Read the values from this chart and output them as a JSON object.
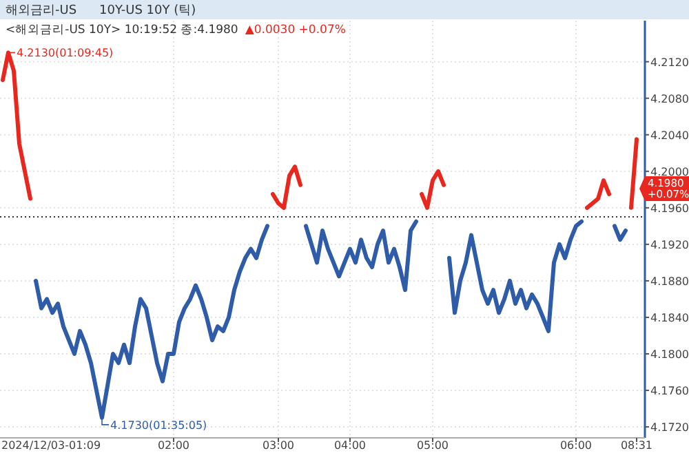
{
  "chart_data": {
    "type": "line",
    "title": "해외금리-US",
    "subtitle": "10Y-US 10Y (틱)",
    "categories": [
      null,
      null,
      null,
      null,
      null,
      null,
      null,
      null,
      null,
      null,
      null,
      null,
      null,
      null,
      null,
      null,
      null,
      null,
      null,
      null,
      null,
      null,
      null,
      null,
      null,
      null,
      null,
      null,
      null,
      null,
      null,
      "02:00",
      null,
      null,
      null,
      null,
      null,
      null,
      null,
      null,
      null,
      null,
      null,
      null,
      null,
      null,
      null,
      null,
      null,
      null,
      "03:00",
      null,
      null,
      null,
      null,
      null,
      null,
      null,
      null,
      null,
      null,
      null,
      null,
      "04:00",
      null,
      null,
      null,
      null,
      null,
      null,
      null,
      null,
      null,
      null,
      null,
      null,
      null,
      null,
      "05:00",
      null,
      null,
      null,
      null,
      null,
      null,
      null,
      null,
      null,
      null,
      null,
      null,
      null,
      null,
      null,
      null,
      null,
      null,
      null,
      null,
      null,
      null,
      null,
      null,
      null,
      "06:00",
      null,
      null,
      null,
      null,
      null,
      null,
      null,
      null,
      null,
      null,
      "08:31"
    ],
    "series": [
      {
        "color": "#e8281e",
        "values": [
          4.21,
          4.213,
          4.211,
          4.203,
          4.2,
          4.197,
          null,
          null,
          null,
          null,
          null,
          null,
          null,
          null,
          null,
          null,
          null,
          null,
          null,
          null,
          null,
          null,
          null,
          null,
          null,
          null,
          null,
          null,
          null,
          null,
          null,
          null,
          null,
          null,
          null,
          null,
          null,
          null,
          null,
          null,
          null,
          null,
          null,
          null,
          null,
          null,
          null,
          null,
          null,
          4.1975,
          4.1965,
          4.196,
          4.1995,
          4.2005,
          4.1985,
          null,
          null,
          null,
          null,
          null,
          null,
          null,
          null,
          null,
          null,
          null,
          null,
          null,
          null,
          null,
          null,
          null,
          null,
          null,
          null,
          null,
          4.1975,
          4.196,
          4.199,
          4.2,
          4.1985,
          null,
          null,
          null,
          null,
          null,
          null,
          null,
          null,
          null,
          null,
          null,
          null,
          null,
          null,
          null,
          null,
          null,
          null,
          null,
          null,
          null,
          null,
          null,
          null,
          null,
          4.196,
          4.1965,
          4.197,
          4.199,
          4.1975,
          null,
          null,
          null,
          4.196,
          4.2035
        ]
      },
      {
        "color": "#2e5ca8",
        "values": [
          null,
          null,
          null,
          null,
          null,
          null,
          4.188,
          4.185,
          4.186,
          4.1845,
          4.1855,
          4.183,
          4.1815,
          4.18,
          4.1825,
          4.181,
          4.179,
          4.176,
          4.173,
          4.1765,
          4.18,
          4.179,
          4.181,
          4.179,
          4.183,
          4.186,
          4.185,
          4.182,
          4.179,
          4.177,
          4.18,
          4.18,
          4.1835,
          4.185,
          4.186,
          4.1875,
          4.186,
          4.184,
          4.1815,
          4.183,
          4.1825,
          4.184,
          4.187,
          4.189,
          4.1905,
          4.1915,
          4.1905,
          4.1925,
          4.194,
          null,
          null,
          null,
          null,
          null,
          null,
          4.194,
          4.192,
          4.19,
          4.1935,
          4.1915,
          4.19,
          4.1885,
          4.19,
          4.1915,
          4.19,
          4.1925,
          4.1905,
          4.1895,
          4.192,
          4.1935,
          4.19,
          4.1915,
          4.1895,
          4.187,
          4.1935,
          4.1945,
          null,
          null,
          null,
          null,
          null,
          4.1905,
          4.1845,
          4.188,
          4.19,
          4.193,
          4.19,
          4.187,
          4.1855,
          4.187,
          4.1845,
          4.186,
          4.188,
          4.1855,
          4.187,
          4.185,
          4.1865,
          4.1855,
          4.184,
          4.1825,
          4.19,
          4.192,
          4.1905,
          4.1925,
          4.194,
          4.1945,
          null,
          null,
          null,
          null,
          null,
          4.194,
          4.1925,
          4.1935,
          null,
          null
        ]
      }
    ],
    "ylim": [
      4.1708,
      4.2165
    ],
    "yticks": [
      {
        "value": 4.172,
        "label": "4.1720"
      },
      {
        "value": 4.176,
        "label": "4.1760"
      },
      {
        "value": 4.18,
        "label": "4.1800"
      },
      {
        "value": 4.184,
        "label": "4.1840"
      },
      {
        "value": 4.188,
        "label": "4.1880"
      },
      {
        "value": 4.192,
        "label": "4.1920"
      },
      {
        "value": 4.196,
        "label": "4.1960"
      },
      {
        "value": 4.2,
        "label": "4.2000"
      },
      {
        "value": 4.204,
        "label": "4.2040"
      },
      {
        "value": 4.208,
        "label": "4.2080"
      },
      {
        "value": 4.212,
        "label": "4.2120"
      }
    ],
    "ref_lines": [
      {
        "axis": "y",
        "value": 4.195,
        "label": null,
        "color": "#333333",
        "line_style": "dotted"
      }
    ],
    "annotations": [
      "<해외금리-US 10Y> 10:19:52 종:4.1980",
      "▲0.0030 +0.07%",
      "4.2130(01:09:45)",
      "4.1730(01:35:05)",
      "4.1980 +0.07%",
      "2024/12/03-01:09"
    ],
    "grid": true
  }
}
